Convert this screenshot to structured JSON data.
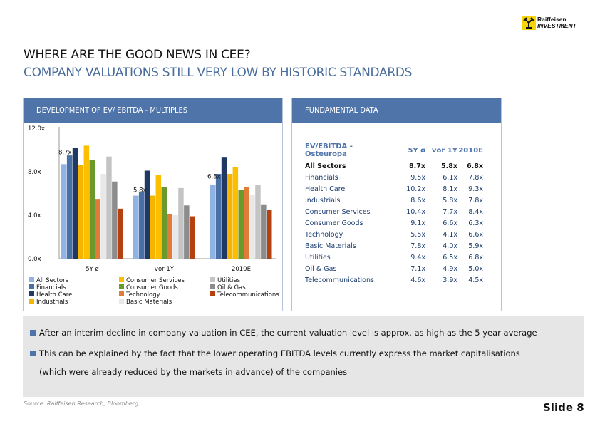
{
  "logo": {
    "line1": "Raiffeisen",
    "line2": "INVESTMENT",
    "brand_color": "#f5d50a"
  },
  "title": "WHERE ARE THE GOOD NEWS IN CEE?",
  "subtitle": "COMPANY VALUATIONS STILL VERY LOW BY HISTORIC STANDARDS",
  "left_panel": {
    "header": "DEVELOPMENT OF EV/ EBITDA - MULTIPLES"
  },
  "right_panel": {
    "header": "FUNDAMENTAL DATA"
  },
  "chart_data": {
    "type": "bar",
    "title": "DEVELOPMENT OF EV/ EBITDA - MULTIPLES",
    "categories": [
      "5Y ø",
      "vor 1Y",
      "2010E"
    ],
    "yticks": [
      "12.0x",
      "8.0x",
      "4.0x",
      "0.0x"
    ],
    "ylim": [
      0,
      12
    ],
    "group_labels": [
      "8.7x",
      "5.8x",
      "6.8x"
    ],
    "series": [
      {
        "name": "All Sectors",
        "color": "#8fb4e3",
        "values": [
          8.7,
          5.8,
          6.8
        ]
      },
      {
        "name": "Financials",
        "color": "#4a6fa5",
        "values": [
          9.5,
          6.1,
          7.8
        ]
      },
      {
        "name": "Health Care",
        "color": "#1f3864",
        "values": [
          10.2,
          8.1,
          9.3
        ]
      },
      {
        "name": "Industrials",
        "color": "#f4b400",
        "values": [
          8.6,
          5.8,
          7.8
        ]
      },
      {
        "name": "Consumer Services",
        "color": "#fbbf00",
        "values": [
          10.4,
          7.7,
          8.4
        ]
      },
      {
        "name": "Consumer Goods",
        "color": "#6a9a2e",
        "values": [
          9.1,
          6.6,
          6.3
        ]
      },
      {
        "name": "Technology",
        "color": "#e07b39",
        "values": [
          5.5,
          4.1,
          6.6
        ]
      },
      {
        "name": "Basic Materials",
        "color": "#e8e8e8",
        "values": [
          7.8,
          4.0,
          5.9
        ]
      },
      {
        "name": "Utilities",
        "color": "#c4c4c4",
        "values": [
          9.4,
          6.5,
          6.8
        ]
      },
      {
        "name": "Oil & Gas",
        "color": "#8c8c8c",
        "values": [
          7.1,
          4.9,
          5.0
        ]
      },
      {
        "name": "Telecommunications",
        "color": "#b5410f",
        "values": [
          4.6,
          3.9,
          4.5
        ]
      }
    ]
  },
  "table": {
    "headers": [
      "EV/EBITDA - Osteuropa",
      "5Y ø",
      "vor 1Y",
      "2010E"
    ],
    "rows": [
      {
        "name": "All Sectors",
        "a": "8.7x",
        "b": "5.8x",
        "c": "6.8x"
      },
      {
        "name": "Financials",
        "a": "9.5x",
        "b": "6.1x",
        "c": "7.8x"
      },
      {
        "name": "Health Care",
        "a": "10.2x",
        "b": "8.1x",
        "c": "9.3x"
      },
      {
        "name": "Industrials",
        "a": "8.6x",
        "b": "5.8x",
        "c": "7.8x"
      },
      {
        "name": "Consumer Services",
        "a": "10.4x",
        "b": "7.7x",
        "c": "8.4x"
      },
      {
        "name": "Consumer Goods",
        "a": "9.1x",
        "b": "6.6x",
        "c": "6.3x"
      },
      {
        "name": "Technology",
        "a": "5.5x",
        "b": "4.1x",
        "c": "6.6x"
      },
      {
        "name": "Basic Materials",
        "a": "7.8x",
        "b": "4.0x",
        "c": "5.9x"
      },
      {
        "name": "Utilities",
        "a": "9.4x",
        "b": "6.5x",
        "c": "6.8x"
      },
      {
        "name": "Oil & Gas",
        "a": "7.1x",
        "b": "4.9x",
        "c": "5.0x"
      },
      {
        "name": "Telecommunications",
        "a": "4.6x",
        "b": "3.9x",
        "c": "4.5x"
      }
    ]
  },
  "bullets": {
    "b1": "After an interim decline in company valuation in CEE, the current valuation level is approx. as high as the 5 year average",
    "b2": "This can be explained by the fact that the lower operating EBITDA levels currently express the market capitalisations",
    "b2_cont": "(which were already reduced by the markets in advance) of the companies"
  },
  "source": "Source: Raiffeisen Research, Bloomberg",
  "slide_label": "Slide 8"
}
